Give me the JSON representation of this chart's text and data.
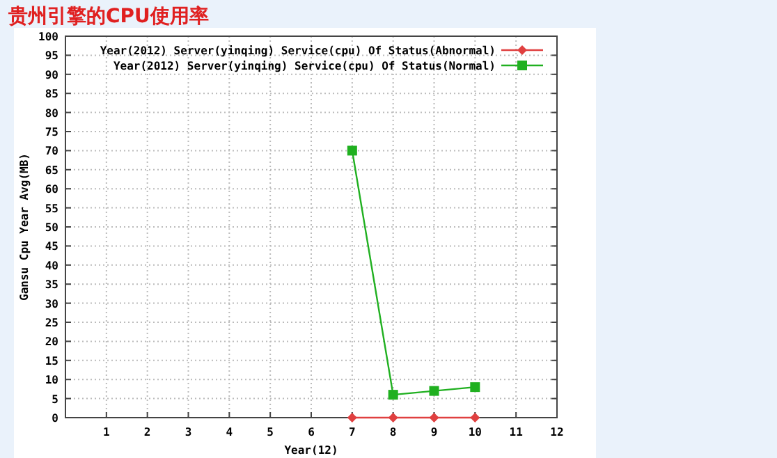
{
  "chart_data": {
    "type": "line",
    "title": "贵州引擎的CPU使用率",
    "xlabel": "Year(12)",
    "ylabel": "Gansu Cpu Year Avg(MB)",
    "x": [
      7,
      8,
      9,
      10
    ],
    "series": [
      {
        "name": "Year(2012) Server(yinqing) Service(cpu) Of Status(Abnormal)",
        "color": "#e04040",
        "values": [
          0,
          0,
          0,
          0
        ],
        "marker": "diamond"
      },
      {
        "name": "Year(2012) Server(yinqing) Service(cpu) Of Status(Normal)",
        "color": "#20b020",
        "values": [
          70,
          6,
          7,
          8
        ],
        "marker": "square"
      }
    ],
    "xlim": [
      0,
      12
    ],
    "xticks": [
      1,
      2,
      3,
      4,
      5,
      6,
      7,
      8,
      9,
      10,
      11,
      12
    ],
    "ylim": [
      0,
      100
    ],
    "yticks": [
      0,
      5,
      10,
      15,
      20,
      25,
      30,
      35,
      40,
      45,
      50,
      55,
      60,
      65,
      70,
      75,
      80,
      85,
      90,
      95,
      100
    ],
    "grid": true,
    "legend": "top right",
    "line_style": "solid"
  }
}
